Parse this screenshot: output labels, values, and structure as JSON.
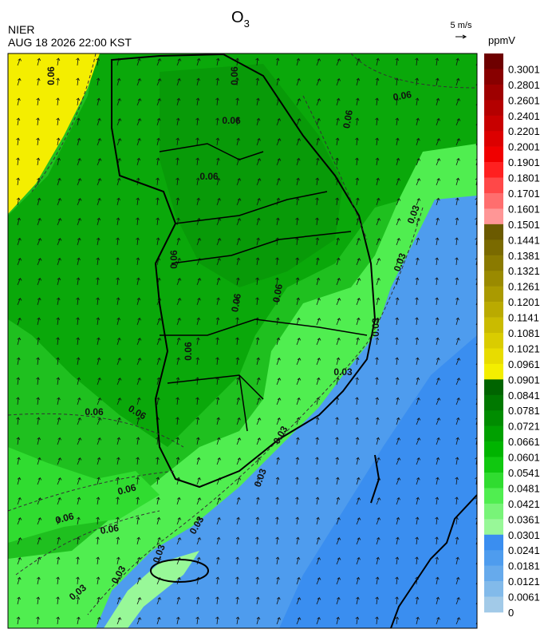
{
  "header": {
    "agency": "NIER",
    "timestamp": "AUG 18 2026 22:00 KST",
    "title": {
      "main": "O",
      "sub": "3"
    }
  },
  "wind_legend": {
    "label": "5 m/s"
  },
  "colorbar": {
    "unit": "ppmV",
    "labels": [
      "0.3001",
      "0.2801",
      "0.2601",
      "0.2401",
      "0.2201",
      "0.2001",
      "0.1901",
      "0.1801",
      "0.1701",
      "0.1601",
      "0.1501",
      "0.1441",
      "0.1381",
      "0.1321",
      "0.1261",
      "0.1201",
      "0.1141",
      "0.1081",
      "0.1021",
      "0.0961",
      "0.0901",
      "0.0841",
      "0.0781",
      "0.0721",
      "0.0661",
      "0.0601",
      "0.0541",
      "0.0481",
      "0.0421",
      "0.0361",
      "0.0301",
      "0.0241",
      "0.0181",
      "0.0121",
      "0.0061",
      "0"
    ],
    "colors": [
      "#6e0000",
      "#880000",
      "#9e0000",
      "#b40000",
      "#c80000",
      "#dc0000",
      "#f00000",
      "#ff2020",
      "#ff4848",
      "#ff6e6e",
      "#ff9696",
      "#6b5a00",
      "#7a6a00",
      "#8a7a00",
      "#9a8a00",
      "#aa9a00",
      "#baaa00",
      "#cabb00",
      "#dacc00",
      "#e8dc00",
      "#f4ee00",
      "#006400",
      "#007800",
      "#008c00",
      "#00a000",
      "#00b400",
      "#10c810",
      "#30dc30",
      "#50ee50",
      "#78f478",
      "#98f898",
      "#3a8ef0",
      "#4e9cee",
      "#66aaec",
      "#82baea",
      "#a2cae8"
    ]
  },
  "contour_labels": [
    "0.06",
    "0.06",
    "0.06",
    "0.06",
    "0.06",
    "0.06",
    "0.06",
    "0.06",
    "0.06",
    "0.06",
    "0.06",
    "0.06",
    "0.06",
    "0.06",
    "0.06",
    "0.03",
    "0.03",
    "0.03",
    "0.03",
    "0.03",
    "0.03",
    "0.03",
    "0.03",
    "0.03",
    "0.03"
  ]
}
